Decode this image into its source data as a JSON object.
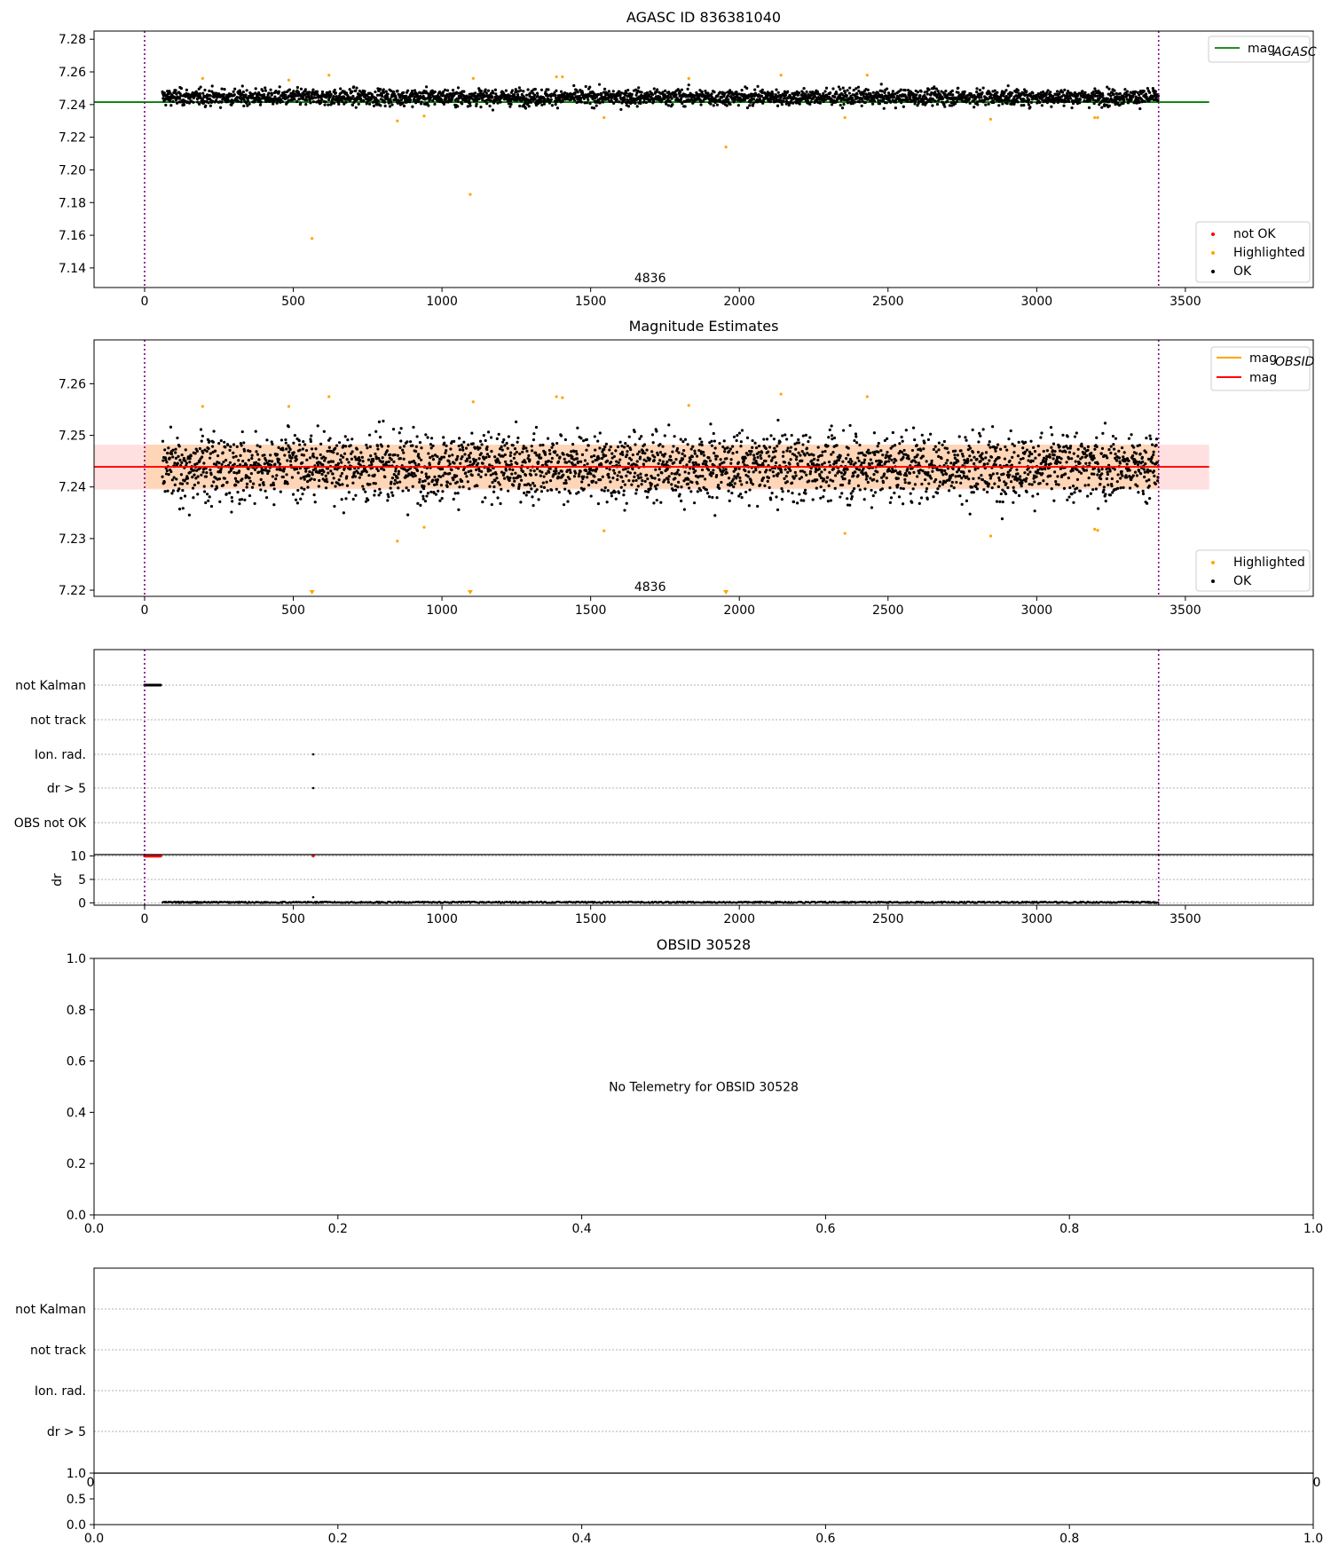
{
  "chart_data": [
    {
      "type": "scatter",
      "name": "agasc-panel",
      "title": "AGASC ID 836381040",
      "xlim": [
        -170,
        3930
      ],
      "ylim": [
        7.128,
        7.285
      ],
      "xticks": [
        0,
        500,
        1000,
        1500,
        2000,
        2500,
        3000,
        3500
      ],
      "yticks": [
        "7.14",
        "7.16",
        "7.18",
        "7.20",
        "7.22",
        "7.24",
        "7.26",
        "7.28"
      ],
      "ytick_values": [
        7.14,
        7.16,
        7.18,
        7.2,
        7.22,
        7.24,
        7.26,
        7.28
      ],
      "vlines": [
        0,
        3410
      ],
      "hline": {
        "label": "mag",
        "subscript": "AGASC",
        "value": 7.2415,
        "x_range": [
          -170,
          3580
        ],
        "color": "#008000"
      },
      "interval_label": "4836",
      "interval_label_x": 1700,
      "ok_band": {
        "x_range": [
          60,
          3410
        ],
        "center": 7.2445,
        "spread": 0.0035
      },
      "series": [
        {
          "name": "OK",
          "color": "#000000",
          "n": 3000
        },
        {
          "name": "Highlighted",
          "color": "#ffa500",
          "points": [
            [
              195,
              7.256
            ],
            [
              485,
              7.255
            ],
            [
              563,
              7.158
            ],
            [
              620,
              7.258
            ],
            [
              850,
              7.23
            ],
            [
              940,
              7.233
            ],
            [
              1095,
              7.185
            ],
            [
              1105,
              7.256
            ],
            [
              1385,
              7.257
            ],
            [
              1405,
              7.257
            ],
            [
              1545,
              7.232
            ],
            [
              1830,
              7.256
            ],
            [
              1955,
              7.214
            ],
            [
              2140,
              7.258
            ],
            [
              2355,
              7.232
            ],
            [
              2430,
              7.258
            ],
            [
              2845,
              7.231
            ],
            [
              3195,
              7.232
            ],
            [
              3205,
              7.232
            ]
          ]
        },
        {
          "name": "not OK",
          "color": "#ff0000",
          "points": []
        }
      ],
      "legend": [
        {
          "label": "not OK",
          "color": "#ff0000"
        },
        {
          "label": "Highlighted",
          "color": "#ffa500"
        },
        {
          "label": "OK",
          "color": "#000000"
        }
      ]
    },
    {
      "type": "scatter",
      "name": "magnitude-panel",
      "title": "Magnitude Estimates",
      "xlim": [
        -170,
        3930
      ],
      "ylim": [
        7.2188,
        7.2685
      ],
      "xticks": [
        0,
        500,
        1000,
        1500,
        2000,
        2500,
        3000,
        3500
      ],
      "yticks": [
        "7.22",
        "7.23",
        "7.24",
        "7.25",
        "7.26"
      ],
      "ytick_values": [
        7.22,
        7.23,
        7.24,
        7.25,
        7.26
      ],
      "vlines": [
        0,
        3410
      ],
      "mag_line": {
        "label": "mag",
        "value": 7.2439,
        "color": "#ff0000",
        "x_range": [
          -170,
          3580
        ]
      },
      "mag_obsid": {
        "label": "mag",
        "subscript": "OBSID",
        "color": "#ffa500",
        "band": [
          7.2397,
          7.2482
        ],
        "x_range": [
          0,
          3410
        ]
      },
      "outer_band": {
        "range": [
          7.2395,
          7.2482
        ],
        "x_range": [
          -170,
          3580
        ]
      },
      "interval_label": "4836",
      "interval_label_x": 1700,
      "ok_band": {
        "x_range": [
          60,
          3410
        ],
        "center": 7.244,
        "spread": 0.0045
      },
      "series": [
        {
          "name": "OK",
          "color": "#000000",
          "n": 3000
        },
        {
          "name": "Highlighted",
          "color": "#ffa500",
          "points": [
            [
              195,
              7.2556
            ],
            [
              485,
              7.2556
            ],
            [
              620,
              7.2575
            ],
            [
              850,
              7.2295
            ],
            [
              940,
              7.2322
            ],
            [
              1105,
              7.2565
            ],
            [
              1385,
              7.2575
            ],
            [
              1405,
              7.2573
            ],
            [
              1545,
              7.2315
            ],
            [
              1830,
              7.2558
            ],
            [
              2140,
              7.258
            ],
            [
              2355,
              7.231
            ],
            [
              2430,
              7.2575
            ],
            [
              2845,
              7.2305
            ],
            [
              3195,
              7.2318
            ],
            [
              3205,
              7.2316
            ]
          ]
        },
        {
          "name": "Highlighted-offscale",
          "color": "#ffa500",
          "points": [
            [
              563,
              7.2192
            ],
            [
              1095,
              7.2192
            ],
            [
              1955,
              7.2192
            ]
          ]
        }
      ],
      "legend_top": [
        {
          "label": "mag",
          "subscript": "OBSID",
          "color": "#ffa500"
        },
        {
          "label": "mag",
          "subscript": "",
          "color": "#ff0000"
        }
      ],
      "legend_bottom": [
        {
          "label": "Highlighted",
          "color": "#ffa500"
        },
        {
          "label": "OK",
          "color": "#000000"
        }
      ]
    },
    {
      "type": "scatter",
      "name": "flags-panel",
      "xlim": [
        -170,
        3930
      ],
      "categories": [
        "not Kalman",
        "not track",
        "Ion. rad.",
        "dr > 5",
        "OBS not OK"
      ],
      "flag_points": [
        {
          "category": "not Kalman",
          "x_range": [
            0,
            55
          ],
          "color": "#000000"
        },
        {
          "category": "Ion. rad.",
          "x": 567,
          "color": "#000000"
        },
        {
          "category": "dr > 5",
          "x": 567,
          "color": "#000000"
        }
      ],
      "vlines": [
        0,
        3410
      ]
    },
    {
      "type": "scatter",
      "name": "dr-panel",
      "ylabel": "dr",
      "xlim": [
        -170,
        3930
      ],
      "ylim": [
        -0.5,
        10.3
      ],
      "yticks": [
        "0",
        "5",
        "10"
      ],
      "ytick_values": [
        0,
        5,
        10
      ],
      "xticks": [
        0,
        500,
        1000,
        1500,
        2000,
        2500,
        3000,
        3500
      ],
      "vlines": [
        0,
        3410
      ],
      "red_points": {
        "x_range": [
          0,
          55
        ],
        "value": 10,
        "extra": [
          [
            567,
            10
          ]
        ]
      },
      "ok_points": {
        "x_range": [
          60,
          3410
        ],
        "value": 0.1,
        "extra": [
          [
            567,
            1.2
          ]
        ]
      }
    },
    {
      "type": "scatter",
      "name": "obsid-panel",
      "title": "OBSID 30528",
      "message": "No Telemetry for OBSID 30528",
      "xticks": [
        "0.0",
        "0.2",
        "0.4",
        "0.6",
        "0.8",
        "1.0"
      ],
      "yticks": [
        "0.0",
        "0.2",
        "0.4",
        "0.6",
        "0.8",
        "1.0"
      ]
    },
    {
      "type": "scatter",
      "name": "empty-flags-panel",
      "categories": [
        "not Kalman",
        "not track",
        "Ion. rad.",
        "dr > 5"
      ],
      "x_edge_labels": [
        "0",
        "0"
      ]
    },
    {
      "type": "scatter",
      "name": "empty-bottom-panel",
      "xticks": [
        "0.0",
        "0.2",
        "0.4",
        "0.6",
        "0.8",
        "1.0"
      ],
      "yticks": [
        "0.0",
        "0.5",
        "1.0"
      ]
    }
  ]
}
